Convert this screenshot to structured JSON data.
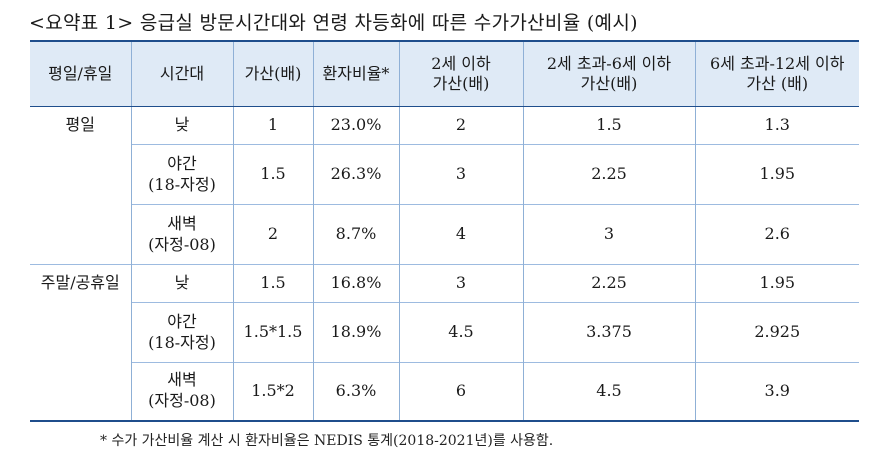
{
  "title": "<요약표 1> 응급실 방문시간대와 연령 차등화에 따른 수가가산비율 (예시)",
  "headers": [
    {
      "line1": "평일/휴일",
      "line2": ""
    },
    {
      "line1": "시간대",
      "line2": ""
    },
    {
      "line1": "가산(배)",
      "line2": ""
    },
    {
      "line1": "환자비율*",
      "line2": ""
    },
    {
      "line1": "2세 이하",
      "line2": "가산(배)"
    },
    {
      "line1": "2세 초과-6세 이하",
      "line2": "가산(배)"
    },
    {
      "line1": "6세 초과-12세 이하",
      "line2": "가산 (배)"
    }
  ],
  "rows": [
    {
      "group": "평일",
      "time1": "낮",
      "time2": "",
      "mult": "1",
      "ratio": "23.0%",
      "age2": "2",
      "age6": "1.5",
      "age12": "1.3"
    },
    {
      "group": "",
      "time1": "야간",
      "time2": "(18-자정)",
      "mult": "1.5",
      "ratio": "26.3%",
      "age2": "3",
      "age6": "2.25",
      "age12": "1.95"
    },
    {
      "group": "",
      "time1": "새벽",
      "time2": "(자정-08)",
      "mult": "2",
      "ratio": "8.7%",
      "age2": "4",
      "age6": "3",
      "age12": "2.6"
    },
    {
      "group": "주말/공휴일",
      "time1": "낮",
      "time2": "",
      "mult": "1.5",
      "ratio": "16.8%",
      "age2": "3",
      "age6": "2.25",
      "age12": "1.95"
    },
    {
      "group": "",
      "time1": "야간",
      "time2": "(18-자정)",
      "mult": "1.5*1.5",
      "ratio": "18.9%",
      "age2": "4.5",
      "age6": "3.375",
      "age12": "2.925"
    },
    {
      "group": "",
      "time1": "새벽",
      "time2": "(자정-08)",
      "mult": "1.5*2",
      "ratio": "6.3%",
      "age2": "6",
      "age6": "4.5",
      "age12": "3.9"
    }
  ],
  "footnote": "* 수가 가산비율 계산 시 환자비율은 NEDIS 통계(2018-2021년)를 사용함."
}
